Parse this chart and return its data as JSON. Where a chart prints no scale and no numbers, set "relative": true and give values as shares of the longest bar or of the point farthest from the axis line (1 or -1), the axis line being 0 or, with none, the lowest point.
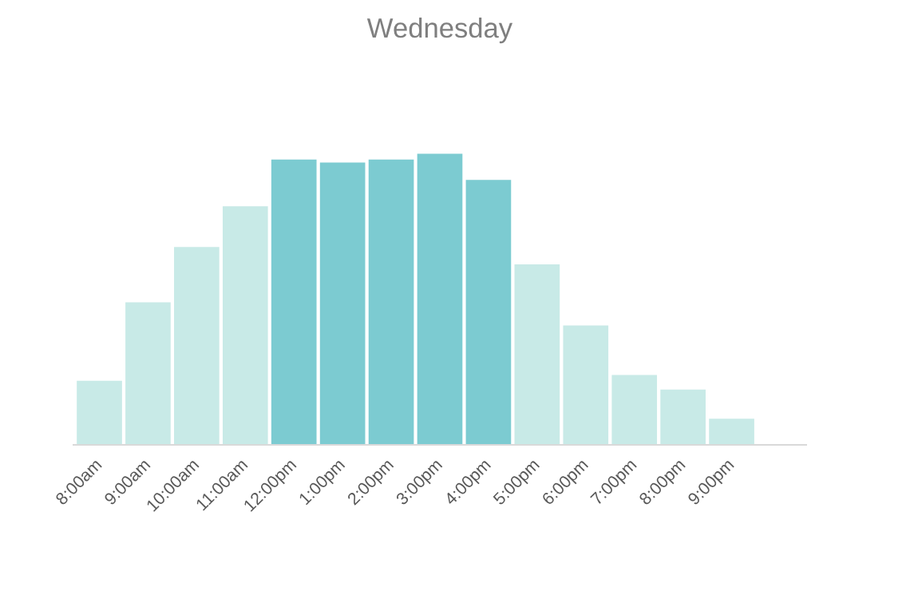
{
  "chart_data": {
    "type": "bar",
    "title": "Wednesday",
    "relative": true,
    "grid": false,
    "categories": [
      "8:00am",
      "9:00am",
      "10:00am",
      "11:00am",
      "12:00pm",
      "1:00pm",
      "2:00pm",
      "3:00pm",
      "4:00pm",
      "5:00pm",
      "6:00pm",
      "7:00pm",
      "8:00pm",
      "9:00pm",
      null
    ],
    "values": [
      0.22,
      0.49,
      0.68,
      0.82,
      0.98,
      0.97,
      0.98,
      1.0,
      0.91,
      0.62,
      0.41,
      0.24,
      0.19,
      0.09,
      null
    ],
    "colors": [
      "#c8eae7",
      "#c8eae7",
      "#c8eae7",
      "#c8eae7",
      "#7ccbd1",
      "#7ccbd1",
      "#7ccbd1",
      "#7ccbd1",
      "#7ccbd1",
      "#c8eae7",
      "#c8eae7",
      "#c8eae7",
      "#c8eae7",
      "#c8eae7",
      "#c8eae7"
    ]
  }
}
